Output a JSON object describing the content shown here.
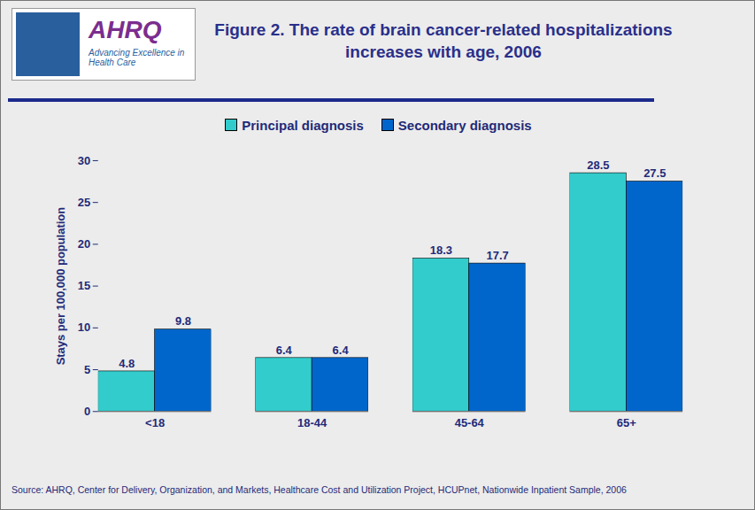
{
  "chart_data": {
    "type": "bar",
    "title": "Figure 2. The rate of brain cancer-related hospitalizations increases with age, 2006",
    "logo_text": [
      "AHRQ",
      "Advancing Excellence in Health Care"
    ],
    "y_label": "Stays per 100,000 population",
    "categories": [
      "<18",
      "18-44",
      "45-64",
      "65+"
    ],
    "series": [
      {
        "name": "Principal diagnosis",
        "color": "#33cccc",
        "values": [
          4.8,
          6.4,
          18.3,
          28.5
        ]
      },
      {
        "name": "Secondary diagnosis",
        "color": "#0066cc",
        "values": [
          9.8,
          6.4,
          17.7,
          27.5
        ]
      }
    ],
    "ylim": [
      0,
      30
    ],
    "yticks": [
      0,
      5,
      10,
      15,
      20,
      25,
      30
    ],
    "grid": false,
    "legend": "top",
    "data_labels": true,
    "source": "Source: AHRQ, Center for Delivery, Organization, and Markets, Healthcare Cost and Utilization Project, HCUPnet, Nationwide Inpatient Sample, 2006"
  }
}
